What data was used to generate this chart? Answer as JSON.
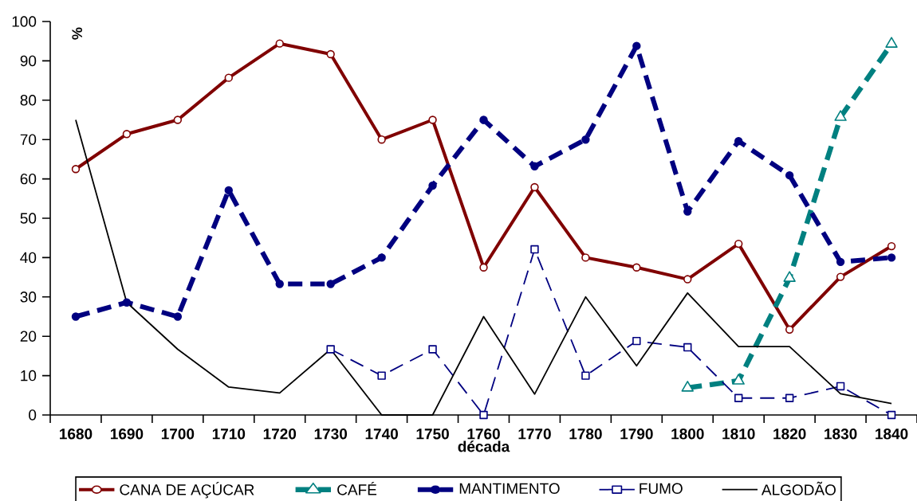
{
  "chart_data": {
    "type": "line",
    "xlabel": "década",
    "ylabel": "%",
    "categories": [
      "1680",
      "1690",
      "1700",
      "1710",
      "1720",
      "1730",
      "1740",
      "1750",
      "1760",
      "1770",
      "1780",
      "1790",
      "1800",
      "1810",
      "1820",
      "1830",
      "1840"
    ],
    "series": [
      {
        "name": "CANA DE AÇÚCAR",
        "color": "#800000",
        "marker": "circle",
        "line_style": "solid",
        "values": [
          62.5,
          71.4,
          75,
          85.7,
          94.4,
          91.7,
          70,
          75,
          37.5,
          57.9,
          40,
          37.5,
          34.5,
          43.5,
          21.7,
          35.1,
          42.9
        ]
      },
      {
        "name": "CAFÉ",
        "color": "#008080",
        "marker": "triangle",
        "line_style": "dashed",
        "values": [
          null,
          null,
          null,
          null,
          null,
          null,
          null,
          null,
          null,
          null,
          null,
          null,
          6.9,
          8.7,
          34.8,
          75.7,
          94.3
        ]
      },
      {
        "name": "MANTIMENTO",
        "color": "#000080",
        "marker": "circle",
        "line_style": "dashed",
        "values": [
          25,
          28.6,
          25,
          57.1,
          33.3,
          33.3,
          40,
          58.3,
          75,
          63.2,
          70,
          93.8,
          51.7,
          69.6,
          60.9,
          38.9,
          40
        ]
      },
      {
        "name": "FUMO",
        "color": "#000080",
        "marker": "square",
        "line_style": "dashed",
        "values": [
          null,
          null,
          null,
          null,
          null,
          16.7,
          10,
          16.7,
          0,
          42.1,
          10,
          18.8,
          17.2,
          4.3,
          4.3,
          7.3,
          0
        ]
      },
      {
        "name": "ALGODÃO",
        "color": "#000000",
        "marker": "none",
        "line_style": "solid",
        "values": [
          75,
          28.6,
          16.7,
          7.1,
          5.6,
          16.7,
          0,
          0,
          25,
          5.3,
          30,
          12.5,
          31,
          17.4,
          17.4,
          5.4,
          2.9
        ]
      }
    ],
    "ylim": [
      0,
      100
    ],
    "yticks": [
      0,
      10,
      20,
      30,
      40,
      50,
      60,
      70,
      80,
      90,
      100
    ],
    "grid": false,
    "legend": "bottom"
  }
}
